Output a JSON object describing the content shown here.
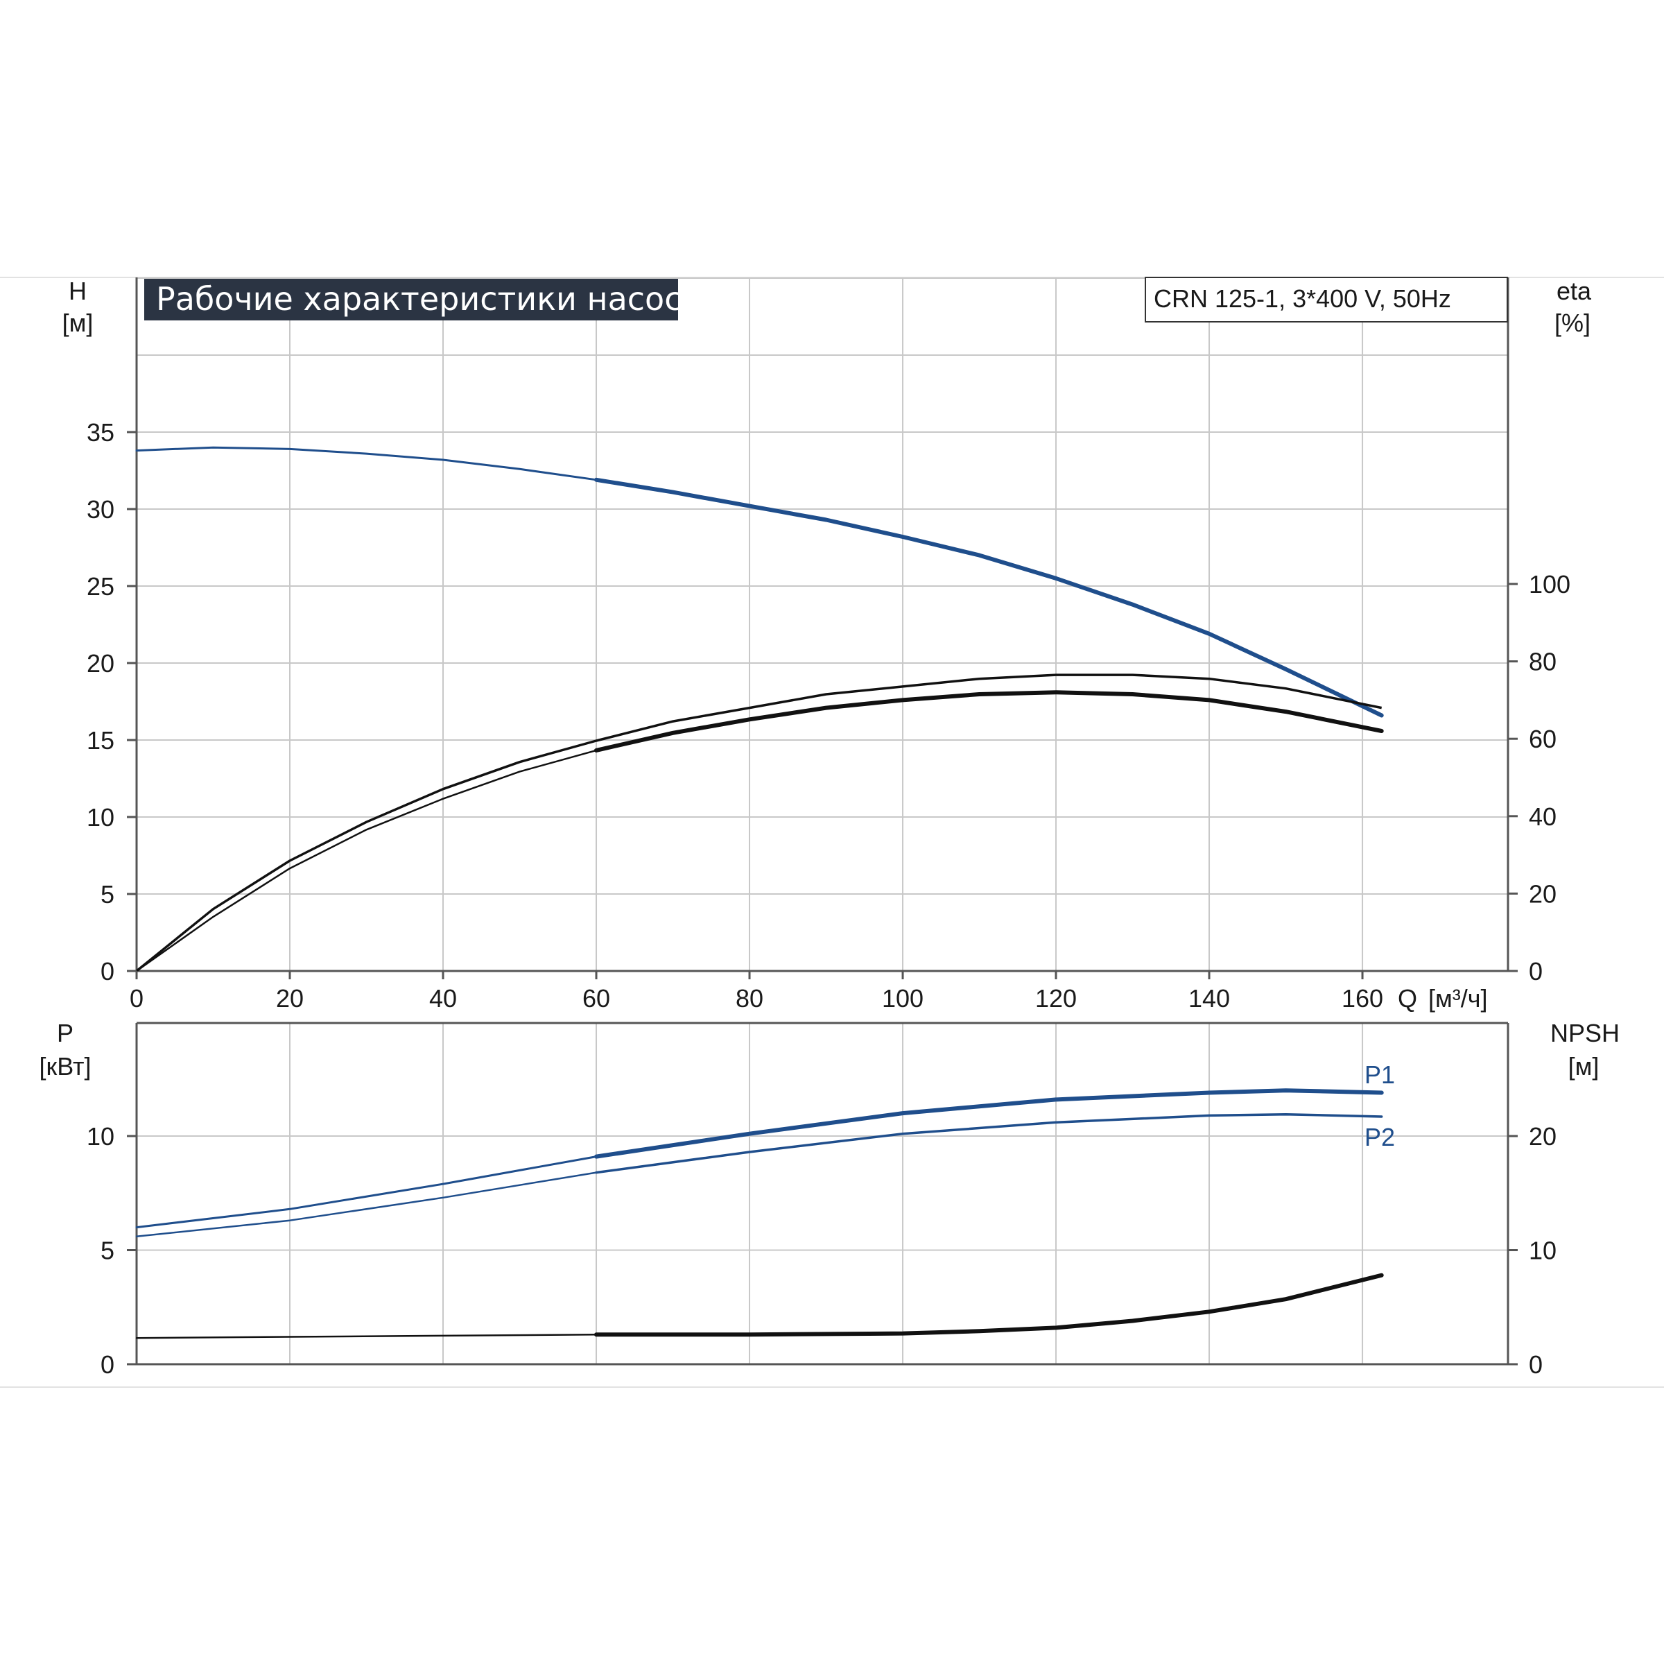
{
  "chart_data": [
    {
      "type": "line",
      "title": "Рабочие характеристики насоса",
      "subtitle": "CRN 125-1, 3*400 V, 50Hz",
      "xlabel": "Q [м³/ч]",
      "ylabel_left": "H [м]",
      "ylabel_right": "eta [%]",
      "ylabel_left_name": "H",
      "ylabel_left_unit": "[м]",
      "ylabel_right_name": "eta",
      "ylabel_right_unit": "[%]",
      "xlabel_name": "Q",
      "xlabel_unit": "[м³/ч]",
      "xlim": [
        0,
        165
      ],
      "ylim_left": [
        0,
        40
      ],
      "ylim_right": [
        0,
        140
      ],
      "x_ticks": [
        "0",
        "20",
        "40",
        "60",
        "80",
        "100",
        "120",
        "140",
        "160"
      ],
      "y_left_ticks": [
        "0",
        "5",
        "10",
        "15",
        "20",
        "25",
        "30",
        "35"
      ],
      "y_right_ticks": [
        "0",
        "20",
        "40",
        "60",
        "80",
        "100"
      ],
      "grid": true,
      "series": [
        {
          "color": "#1f4e8c",
          "axis": "left",
          "x": [
            0,
            10,
            20,
            30,
            40,
            50,
            60,
            70,
            80,
            90,
            100,
            110,
            120,
            130,
            140,
            150,
            162.5
          ],
          "y": [
            33.8,
            34.0,
            33.9,
            33.6,
            33.2,
            32.6,
            31.9,
            31.1,
            30.2,
            29.3,
            28.2,
            27.0,
            25.5,
            23.8,
            21.9,
            19.6,
            16.6
          ]
        },
        {
          "color": "#111111",
          "axis": "right",
          "x": [
            0,
            10,
            20,
            30,
            40,
            50,
            60,
            70,
            80,
            90,
            100,
            110,
            120,
            130,
            140,
            150,
            162.5
          ],
          "y": [
            0,
            16,
            28.5,
            38.5,
            47,
            54,
            59.5,
            64.5,
            68,
            71.5,
            73.5,
            75.5,
            76.5,
            76.5,
            75.5,
            73,
            68
          ]
        },
        {
          "color": "#111111",
          "axis": "right",
          "x": [
            0,
            10,
            20,
            30,
            40,
            50,
            60,
            70,
            80,
            90,
            100,
            110,
            120,
            130,
            140,
            150,
            162.5
          ],
          "y": [
            0,
            14,
            26.5,
            36.5,
            44.5,
            51.5,
            57,
            61.5,
            65,
            68,
            70,
            71.5,
            72,
            71.5,
            70,
            67,
            62
          ]
        }
      ]
    },
    {
      "type": "line",
      "ylabel_left": "P [кВт]",
      "ylabel_right": "NPSH [м]",
      "ylabel_left_name": "P",
      "ylabel_left_unit": "[кВт]",
      "ylabel_right_name": "NPSH",
      "ylabel_right_unit": "[м]",
      "xlim": [
        0,
        165
      ],
      "ylim_left": [
        0,
        15
      ],
      "ylim_right": [
        0,
        30
      ],
      "y_left_ticks": [
        "0",
        "5",
        "10"
      ],
      "y_right_ticks": [
        "0",
        "10",
        "20"
      ],
      "grid": true,
      "series": [
        {
          "name": "P1",
          "color": "#1f4e8c",
          "axis": "left",
          "x": [
            0,
            20,
            40,
            60,
            80,
            100,
            120,
            140,
            150,
            162.5
          ],
          "y": [
            6.0,
            6.8,
            7.9,
            9.1,
            10.1,
            11.0,
            11.6,
            11.9,
            12.0,
            11.9
          ]
        },
        {
          "name": "P2",
          "color": "#1f4e8c",
          "axis": "left",
          "x": [
            0,
            20,
            40,
            60,
            80,
            100,
            120,
            140,
            150,
            162.5
          ],
          "y": [
            5.6,
            6.3,
            7.3,
            8.4,
            9.3,
            10.1,
            10.6,
            10.9,
            10.95,
            10.85
          ]
        },
        {
          "color": "#111111",
          "axis": "right",
          "x": [
            0,
            20,
            40,
            60,
            80,
            100,
            110,
            120,
            130,
            140,
            150,
            162.5
          ],
          "y": [
            2.3,
            2.4,
            2.5,
            2.6,
            2.6,
            2.7,
            2.9,
            3.2,
            3.8,
            4.6,
            5.7,
            7.8
          ]
        }
      ]
    }
  ]
}
